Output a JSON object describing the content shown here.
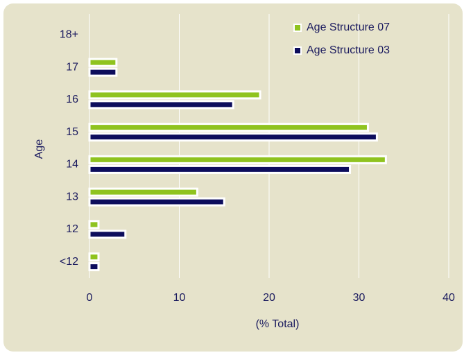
{
  "chart_data": {
    "type": "hbar",
    "categories": [
      "<12",
      "12",
      "13",
      "14",
      "15",
      "16",
      "17",
      "18+"
    ],
    "series": [
      {
        "name": "Age Structure 07",
        "color": "#8fc31f",
        "values": [
          1,
          1,
          12,
          33,
          31,
          19,
          3,
          0
        ]
      },
      {
        "name": "Age Structure 03",
        "color": "#0d0d5c",
        "values": [
          1,
          4,
          15,
          29,
          32,
          16,
          3,
          0
        ]
      }
    ],
    "xlabel": "(% Total)",
    "ylabel": "Age",
    "xlim": [
      0,
      40
    ],
    "xticks": [
      0,
      10,
      20,
      30,
      40
    ],
    "grid": true,
    "legend": "top-right"
  }
}
